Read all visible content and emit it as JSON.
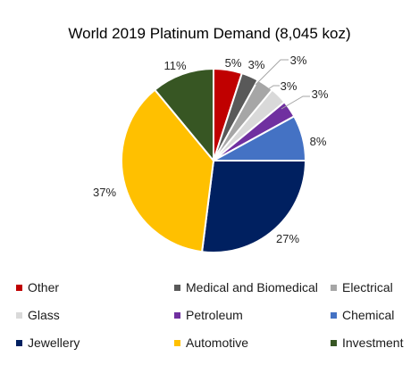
{
  "chart_data": {
    "type": "pie",
    "title": "World 2019 Platinum Demand (8,045 koz)",
    "categories": [
      "Other",
      "Medical and Biomedical",
      "Electrical",
      "Glass",
      "Petroleum",
      "Chemical",
      "Jewellery",
      "Automotive",
      "Investment"
    ],
    "values": [
      5,
      3,
      3,
      3,
      3,
      8,
      27,
      37,
      11
    ],
    "data_labels": [
      "5%",
      "3%",
      "3%",
      "3%",
      "3%",
      "8%",
      "27%",
      "37%",
      "11%"
    ],
    "colors": [
      "#C00000",
      "#595959",
      "#A6A6A6",
      "#D9D9D9",
      "#7030A0",
      "#4472C4",
      "#002060",
      "#FFC000",
      "#375623"
    ],
    "start_angle": "12 o'clock, clockwise",
    "legend_position": "bottom",
    "legend": [
      {
        "label": "Other",
        "color": "#C00000"
      },
      {
        "label": "Medical and Biomedical",
        "color": "#595959"
      },
      {
        "label": "Electrical",
        "color": "#A6A6A6"
      },
      {
        "label": "Glass",
        "color": "#D9D9D9"
      },
      {
        "label": "Petroleum",
        "color": "#7030A0"
      },
      {
        "label": "Chemical",
        "color": "#4472C4"
      },
      {
        "label": "Jewellery",
        "color": "#002060"
      },
      {
        "label": "Automotive",
        "color": "#FFC000"
      },
      {
        "label": "Investment",
        "color": "#375623"
      }
    ]
  }
}
